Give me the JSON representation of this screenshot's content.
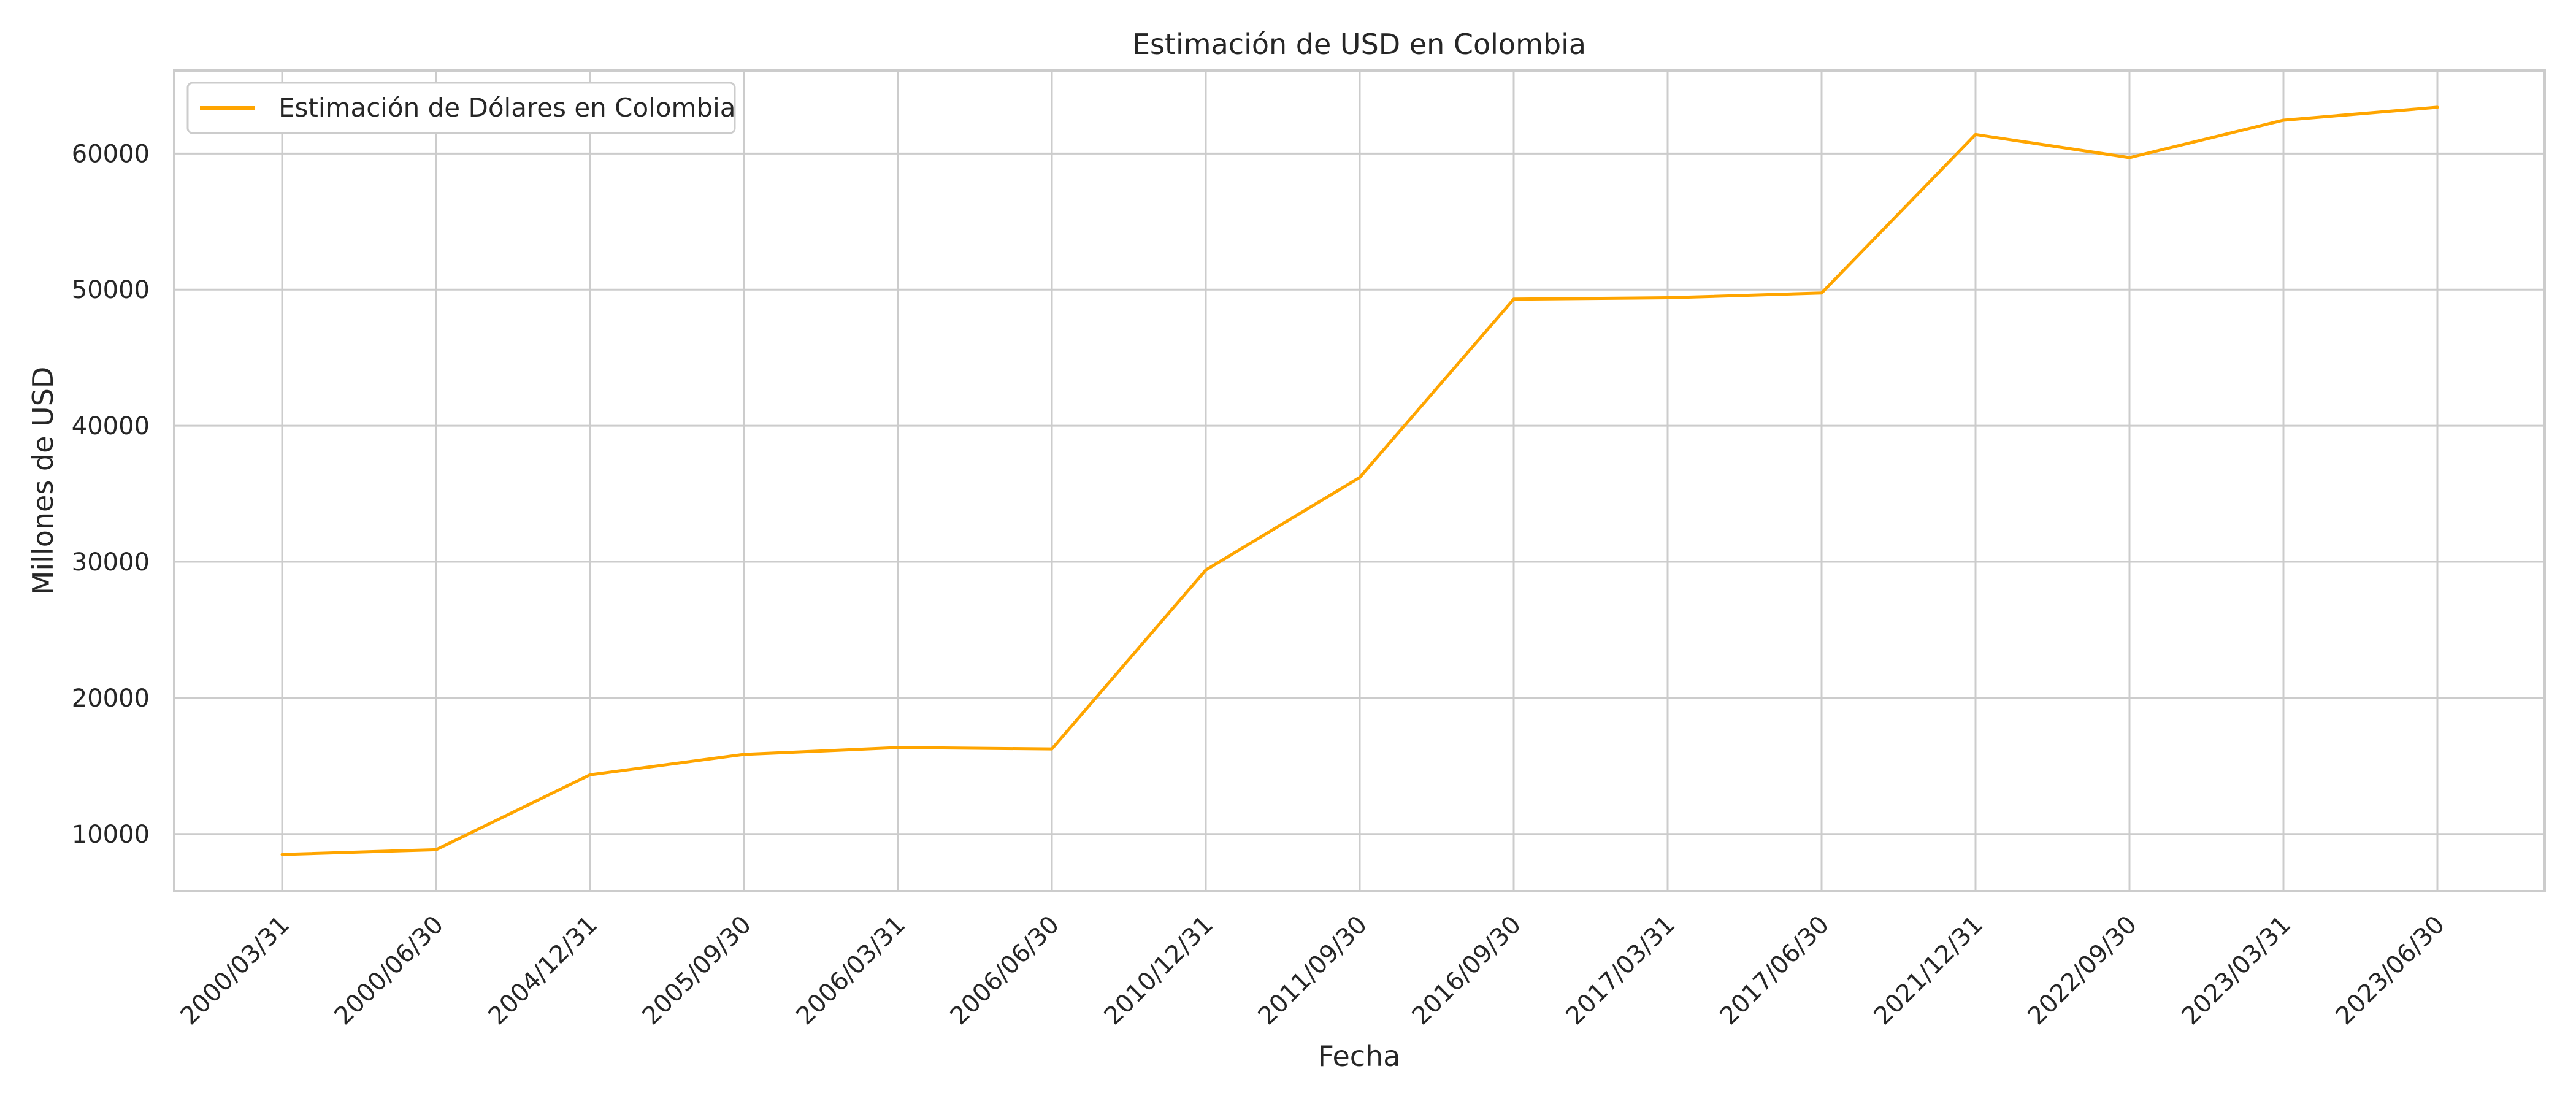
{
  "chart_data": {
    "type": "line",
    "title": "Estimación de USD en Colombia",
    "xlabel": "Fecha",
    "ylabel": "Millones de USD",
    "categories": [
      "2000/03/31",
      "2000/06/30",
      "2004/12/31",
      "2005/09/30",
      "2006/03/31",
      "2006/06/30",
      "2010/12/31",
      "2011/09/30",
      "2016/09/30",
      "2017/03/31",
      "2017/06/30",
      "2021/12/31",
      "2022/09/30",
      "2023/03/31",
      "2023/06/30"
    ],
    "series": [
      {
        "name": "Estimación de Dólares en Colombia",
        "color": "#FFA500",
        "values": [
          8500,
          8850,
          14350,
          15850,
          16350,
          16250,
          29400,
          36200,
          49300,
          49400,
          49750,
          61400,
          59700,
          62450,
          63400
        ]
      }
    ],
    "yticks": [
      10000,
      20000,
      30000,
      40000,
      50000,
      60000
    ],
    "ylim": [
      5800,
      66100
    ],
    "grid": true,
    "legend_position": "top-left"
  }
}
